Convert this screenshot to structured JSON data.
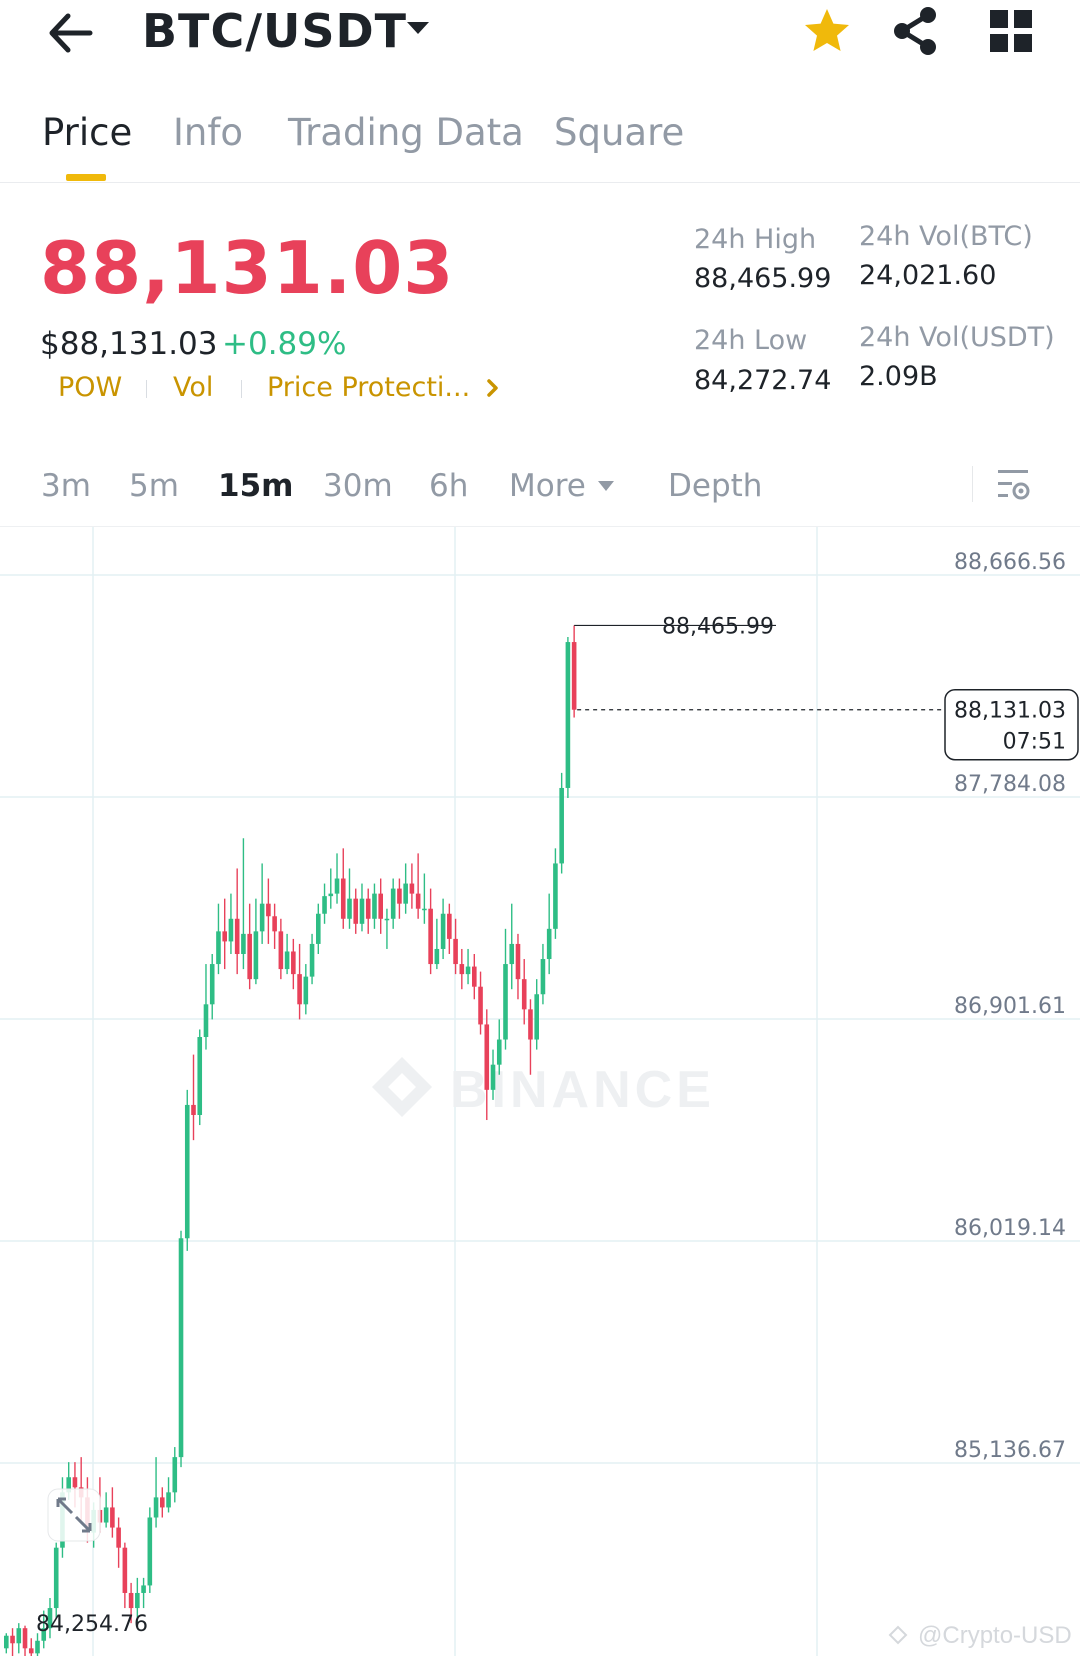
{
  "header": {
    "pair": "BTC/USDT",
    "icons": {
      "back": "arrow-left-icon",
      "pair_menu": "caret-down-icon",
      "favorite": "star-icon",
      "share": "share-icon",
      "more": "grid-icon"
    },
    "colors": {
      "favorite": "#f0b90b"
    }
  },
  "tabs": [
    {
      "label": "Price",
      "active": true
    },
    {
      "label": "Info"
    },
    {
      "label": "Trading Data"
    },
    {
      "label": "Square"
    }
  ],
  "summary": {
    "last_price": "88,131.03",
    "usd_price": "$88,131.03",
    "change_pct": "+0.89%",
    "tags": [
      "POW",
      "Vol",
      "Price Protecti..."
    ],
    "stats": {
      "high_label": "24h High",
      "high_value": "88,465.99",
      "low_label": "24h Low",
      "low_value": "84,272.74",
      "vol_btc_label": "24h Vol(BTC)",
      "vol_btc_value": "24,021.60",
      "vol_usdt_label": "24h Vol(USDT)",
      "vol_usdt_value": "2.09B"
    },
    "colors": {
      "down": "#e8415a",
      "up": "#2ebd85",
      "tag": "#c99400"
    }
  },
  "intervals": {
    "items": [
      "3m",
      "5m",
      "15m",
      "30m",
      "6h"
    ],
    "active": "15m",
    "more_label": "More",
    "depth_label": "Depth"
  },
  "chart": {
    "y_ticks": [
      "88,666.56",
      "87,784.08",
      "86,901.61",
      "86,019.14",
      "85,136.67"
    ],
    "y_tick_values": [
      88666.56,
      87784.08,
      86901.61,
      86019.14,
      85136.67
    ],
    "peak_label": "88,465.99",
    "peak_value": 88465.99,
    "low_label": "84,254.76",
    "low_value": 84254.76,
    "current_price": "88,131.03",
    "current_price_value": 88131.03,
    "countdown": "07:51",
    "watermark": "BINANCE",
    "credit": "@Crypto-USD",
    "colors": {
      "up": "#2ebd85",
      "down": "#e8415a",
      "grid": "#e3f0f3"
    }
  },
  "chart_data": {
    "type": "candlestick",
    "title": "",
    "interval": "15m",
    "ylim": [
      84254.76,
      88666.56
    ],
    "y_ticks": [
      88666.56,
      87784.08,
      86901.61,
      86019.14,
      85136.67
    ],
    "last_price": 88131.03,
    "series": [
      {
        "ohlc": [
          [
            84400,
            84450,
            84380,
            84460
          ],
          [
            84450,
            84420,
            84360,
            84480
          ],
          [
            84420,
            84480,
            84380,
            84500
          ],
          [
            84480,
            84400,
            84340,
            84490
          ],
          [
            84400,
            84380,
            84300,
            84440
          ],
          [
            84380,
            84430,
            84340,
            84460
          ],
          [
            84430,
            84480,
            84400,
            84550
          ],
          [
            84480,
            84560,
            84440,
            84600
          ],
          [
            84560,
            84800,
            84520,
            84820
          ],
          [
            84800,
            85020,
            84760,
            85080
          ],
          [
            85020,
            85080,
            84990,
            85140
          ],
          [
            85080,
            85040,
            84960,
            85140
          ],
          [
            85040,
            85000,
            84900,
            85160
          ],
          [
            85000,
            84860,
            84820,
            85080
          ],
          [
            84860,
            84950,
            84800,
            84980
          ],
          [
            84950,
            84900,
            84860,
            85080
          ],
          [
            84900,
            84960,
            84880,
            85020
          ],
          [
            84960,
            84880,
            84840,
            85040
          ],
          [
            84880,
            84800,
            84720,
            84920
          ],
          [
            84800,
            84620,
            84560,
            84820
          ],
          [
            84620,
            84560,
            84500,
            84660
          ],
          [
            84560,
            84620,
            84500,
            84680
          ],
          [
            84620,
            84650,
            84560,
            84680
          ],
          [
            84650,
            84920,
            84620,
            84960
          ],
          [
            84920,
            85000,
            84880,
            85160
          ],
          [
            85000,
            84960,
            84920,
            85040
          ],
          [
            84960,
            85020,
            84940,
            85080
          ],
          [
            85020,
            85160,
            84980,
            85200
          ],
          [
            85160,
            86030,
            85120,
            86060
          ],
          [
            86030,
            86560,
            85980,
            86620
          ],
          [
            86560,
            86520,
            86420,
            86760
          ],
          [
            86520,
            86830,
            86480,
            86860
          ],
          [
            86830,
            86960,
            86780,
            87120
          ],
          [
            86960,
            87120,
            86900,
            87160
          ],
          [
            87120,
            87250,
            87080,
            87360
          ],
          [
            87250,
            87210,
            87100,
            87380
          ],
          [
            87210,
            87300,
            87160,
            87400
          ],
          [
            87300,
            87160,
            87080,
            87500
          ],
          [
            87160,
            87240,
            87100,
            87620
          ],
          [
            87240,
            87060,
            87020,
            87360
          ],
          [
            87060,
            87250,
            87040,
            87380
          ],
          [
            87250,
            87360,
            87200,
            87520
          ],
          [
            87360,
            87310,
            87200,
            87460
          ],
          [
            87310,
            87250,
            87180,
            87360
          ],
          [
            87250,
            87100,
            87060,
            87300
          ],
          [
            87100,
            87170,
            87080,
            87240
          ],
          [
            87170,
            87080,
            87020,
            87220
          ],
          [
            87080,
            86960,
            86900,
            87200
          ],
          [
            86960,
            87070,
            86920,
            87120
          ],
          [
            87070,
            87200,
            87040,
            87240
          ],
          [
            87200,
            87320,
            87160,
            87360
          ],
          [
            87320,
            87390,
            87280,
            87440
          ],
          [
            87390,
            87400,
            87340,
            87500
          ],
          [
            87400,
            87460,
            87360,
            87560
          ],
          [
            87460,
            87300,
            87260,
            87580
          ],
          [
            87300,
            87380,
            87260,
            87500
          ],
          [
            87380,
            87280,
            87240,
            87420
          ],
          [
            87280,
            87380,
            87250,
            87440
          ],
          [
            87380,
            87300,
            87240,
            87420
          ],
          [
            87300,
            87400,
            87260,
            87440
          ],
          [
            87400,
            87300,
            87240,
            87460
          ],
          [
            87300,
            87300,
            87180,
            87340
          ],
          [
            87300,
            87420,
            87260,
            87460
          ],
          [
            87420,
            87360,
            87300,
            87460
          ],
          [
            87360,
            87440,
            87320,
            87520
          ],
          [
            87440,
            87400,
            87340,
            87520
          ],
          [
            87400,
            87340,
            87300,
            87560
          ],
          [
            87340,
            87340,
            87280,
            87480
          ],
          [
            87340,
            87120,
            87080,
            87420
          ],
          [
            87120,
            87180,
            87100,
            87300
          ],
          [
            87180,
            87320,
            87140,
            87380
          ],
          [
            87320,
            87220,
            87160,
            87360
          ],
          [
            87220,
            87120,
            87080,
            87300
          ],
          [
            87120,
            87080,
            87020,
            87180
          ],
          [
            87080,
            87110,
            87040,
            87180
          ],
          [
            87110,
            87030,
            86980,
            87160
          ],
          [
            87030,
            86880,
            86840,
            87090
          ],
          [
            86880,
            86620,
            86500,
            86940
          ],
          [
            86620,
            86720,
            86580,
            86780
          ],
          [
            86720,
            86820,
            86680,
            86900
          ],
          [
            86820,
            87120,
            86780,
            87260
          ],
          [
            87120,
            87200,
            87020,
            87360
          ],
          [
            87200,
            87060,
            86980,
            87240
          ],
          [
            87060,
            86940,
            86880,
            87140
          ],
          [
            86940,
            86820,
            86680,
            86980
          ],
          [
            86820,
            87000,
            86780,
            87060
          ],
          [
            87000,
            87140,
            86960,
            87200
          ],
          [
            87140,
            87260,
            87080,
            87400
          ],
          [
            87260,
            87520,
            87220,
            87580
          ],
          [
            87520,
            87820,
            87480,
            87880
          ],
          [
            87820,
            88400,
            87780,
            88420
          ],
          [
            88400,
            88131.03,
            88100,
            88465.99
          ]
        ]
      }
    ]
  }
}
